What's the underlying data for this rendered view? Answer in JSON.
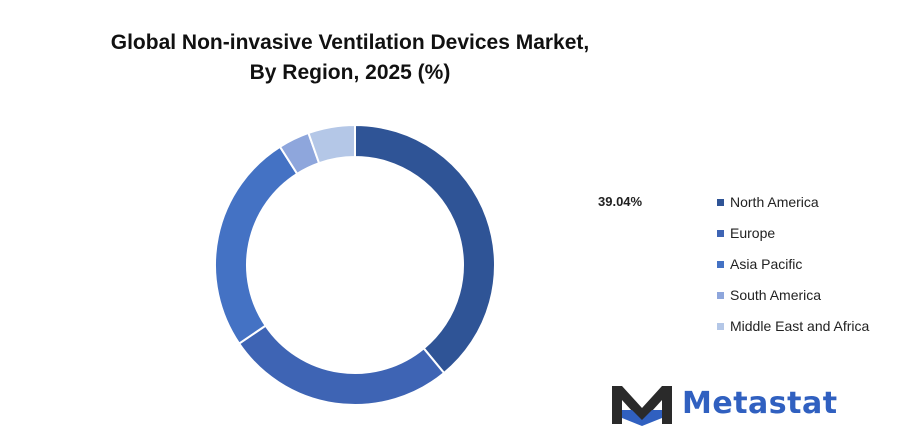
{
  "header": {
    "title_line1": "Global Non-invasive Ventilation Devices Market,",
    "title_line2": "By Region, 2025 (%)"
  },
  "chart_data": {
    "type": "pie",
    "hole": true,
    "title": "Global Non-invasive Ventilation Devices Market, By Region, 2025 (%)",
    "series": [
      {
        "name": "North America",
        "value": 39.04,
        "color": "#2f5496"
      },
      {
        "name": "Europe",
        "value": 26.5,
        "color": "#3e64b4"
      },
      {
        "name": "Asia Pacific",
        "value": 25.5,
        "color": "#4472c4"
      },
      {
        "name": "South America",
        "value": 3.6,
        "color": "#8ea6dc"
      },
      {
        "name": "Middle East and Africa",
        "value": 5.4,
        "color": "#b4c7e7"
      }
    ],
    "data_labels": [
      {
        "series": "North America",
        "text": "39.04%"
      }
    ],
    "legend_position": "right"
  },
  "brand": {
    "name": "Metastat",
    "color": "#3060c0",
    "icon": "metastat-m-logo-icon"
  }
}
